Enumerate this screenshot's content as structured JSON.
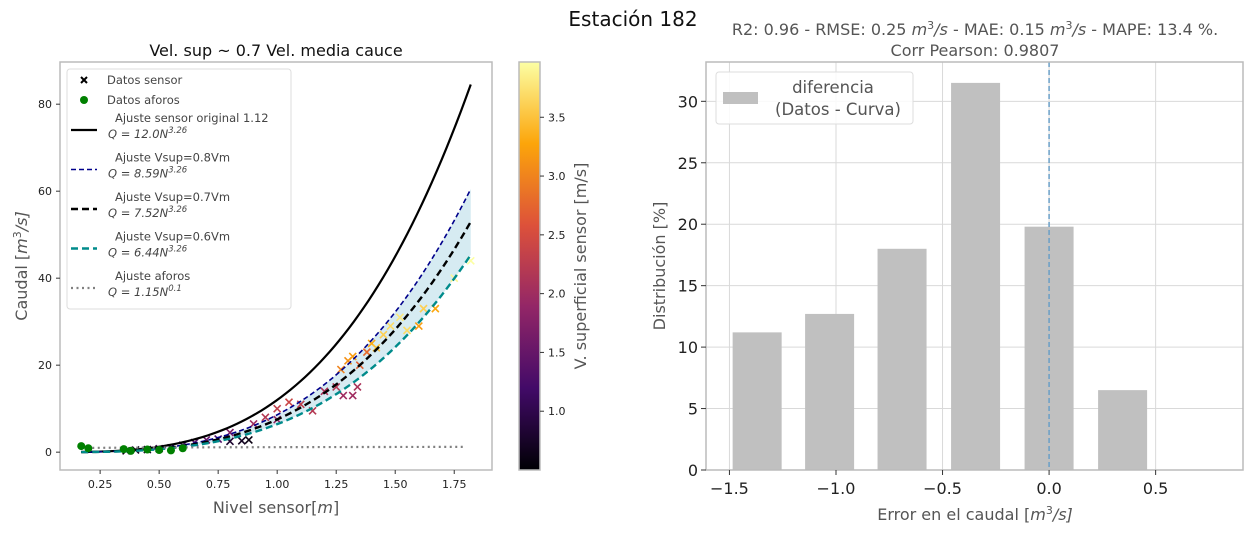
{
  "suptitle": "Estación 182",
  "chart_data": [
    {
      "type": "scatter",
      "title": "Vel. sup ~ 0.7 Vel. media cauce",
      "xlabel": "Nivel sensor[m]",
      "xlabel_parts": [
        "Nivel sensor[",
        "m",
        "]"
      ],
      "ylabel_parts": [
        "Caudal [",
        "m",
        "3",
        "/s]"
      ],
      "xlim": [
        0.08,
        1.91
      ],
      "ylim": [
        -4.1,
        89.7
      ],
      "xticks": [
        0.25,
        0.5,
        0.75,
        1.0,
        1.25,
        1.5,
        1.75
      ],
      "xtick_labels": [
        "0.25",
        "0.50",
        "0.75",
        "1.00",
        "1.25",
        "1.50",
        "1.75"
      ],
      "yticks": [
        0,
        20,
        40,
        60,
        80
      ],
      "ytick_labels": [
        "0",
        "20",
        "40",
        "60",
        "80"
      ],
      "legend_position": "upper-left",
      "legend": [
        {
          "label": "Datos sensor",
          "kind": "x-marker",
          "color": "#000000"
        },
        {
          "label": "Datos aforos",
          "kind": "dot",
          "color": "#008000"
        },
        {
          "label": "Ajuste sensor original 1.12",
          "eq_coef": "Q = 12.0N",
          "eq_exp": "3.26",
          "kind": "solid",
          "color": "#000000"
        },
        {
          "label": "Ajuste Vsup=0.8Vm",
          "eq_coef": "Q = 8.59N",
          "eq_exp": "3.26",
          "kind": "dashed-thin",
          "color": "#00008b"
        },
        {
          "label": "Ajuste Vsup=0.7Vm",
          "eq_coef": "Q = 7.52N",
          "eq_exp": "3.26",
          "kind": "dashed",
          "color": "#000000"
        },
        {
          "label": "Ajuste Vsup=0.6Vm",
          "eq_coef": "Q = 6.44N",
          "eq_exp": "3.26",
          "kind": "dashed",
          "color": "#008b8b"
        },
        {
          "label": "Ajuste aforos",
          "eq_coef": "Q = 1.15N",
          "eq_exp": "0.1",
          "kind": "dotted",
          "color": "#808080"
        }
      ],
      "curves": [
        {
          "name": "Ajuste sensor original 1.12",
          "a": 12.0,
          "b": 3.26,
          "x_range": [
            0.17,
            1.82
          ]
        },
        {
          "name": "Ajuste Vsup=0.8Vm",
          "a": 8.59,
          "b": 3.26,
          "x_range": [
            0.17,
            1.82
          ]
        },
        {
          "name": "Ajuste Vsup=0.7Vm",
          "a": 7.52,
          "b": 3.26,
          "x_range": [
            0.17,
            1.82
          ]
        },
        {
          "name": "Ajuste Vsup=0.6Vm",
          "a": 6.44,
          "b": 3.26,
          "x_range": [
            0.17,
            1.82
          ]
        },
        {
          "name": "Ajuste aforos",
          "a": 1.15,
          "b": 0.1,
          "x_range": [
            0.17,
            1.8
          ]
        }
      ],
      "band_between": [
        "Ajuste Vsup=0.8Vm",
        "Ajuste Vsup=0.6Vm"
      ],
      "band_color": "#add8e6",
      "sensor_points": [
        [
          0.36,
          0.3,
          0.6
        ],
        [
          0.4,
          0.5,
          0.7
        ],
        [
          0.45,
          0.6,
          0.8
        ],
        [
          0.5,
          0.8,
          0.9
        ],
        [
          0.55,
          1.0,
          1.0
        ],
        [
          0.6,
          1.6,
          1.2
        ],
        [
          0.65,
          2.2,
          1.4
        ],
        [
          0.7,
          2.8,
          1.5
        ],
        [
          0.75,
          3.0,
          1.3
        ],
        [
          0.8,
          2.5,
          0.8
        ],
        [
          0.85,
          2.6,
          0.7
        ],
        [
          0.88,
          2.8,
          0.6
        ],
        [
          0.8,
          4.5,
          1.7
        ],
        [
          0.9,
          6.5,
          2.0
        ],
        [
          0.95,
          8.0,
          2.2
        ],
        [
          1.0,
          10,
          2.3
        ],
        [
          1.05,
          11.5,
          2.4
        ],
        [
          1.1,
          11,
          2.3
        ],
        [
          1.0,
          7.5,
          1.9
        ],
        [
          1.15,
          9.5,
          2.2
        ],
        [
          1.2,
          14,
          2.1
        ],
        [
          1.25,
          15,
          2.2
        ],
        [
          1.28,
          13,
          2.0
        ],
        [
          1.32,
          13,
          2.0
        ],
        [
          1.34,
          15,
          2.1
        ],
        [
          1.27,
          19,
          3.0
        ],
        [
          1.3,
          21,
          3.1
        ],
        [
          1.32,
          22,
          3.2
        ],
        [
          1.35,
          20,
          2.7
        ],
        [
          1.38,
          23,
          2.8
        ],
        [
          1.4,
          25,
          3.3
        ],
        [
          1.42,
          24,
          3.5
        ],
        [
          1.45,
          27,
          3.6
        ],
        [
          1.48,
          29,
          3.7
        ],
        [
          1.52,
          31,
          3.8
        ],
        [
          1.55,
          28,
          3.7
        ],
        [
          1.6,
          29,
          3.2
        ],
        [
          1.62,
          33,
          3.6
        ],
        [
          1.67,
          33,
          3.3
        ],
        [
          1.75,
          40,
          3.9
        ],
        [
          1.82,
          44,
          3.97
        ]
      ],
      "aforo_points": [
        [
          0.17,
          1.4
        ],
        [
          0.2,
          0.9
        ],
        [
          0.35,
          0.7
        ],
        [
          0.38,
          0.3
        ],
        [
          0.45,
          0.6
        ],
        [
          0.5,
          0.5
        ],
        [
          0.55,
          0.4
        ],
        [
          0.6,
          0.9
        ]
      ],
      "colorbar": {
        "label": "V. superficial sensor [m/s]",
        "range": [
          0.5,
          3.97
        ],
        "ticks": [
          1.0,
          1.5,
          2.0,
          2.5,
          3.0,
          3.5
        ],
        "tick_labels": [
          "1.0",
          "1.5",
          "2.0",
          "2.5",
          "3.0",
          "3.5"
        ],
        "colormap": "inferno",
        "stops": [
          "#000004",
          "#420a68",
          "#932667",
          "#dd513a",
          "#fca50a",
          "#fcffa4"
        ]
      }
    },
    {
      "type": "bar",
      "title_line1_parts": [
        "R2: 0.96 - RMSE: 0.25 ",
        "m",
        "3",
        "/s",
        " - MAE: 0.15 ",
        "m",
        "3",
        "/s",
        " - MAPE: 13.4 %."
      ],
      "title_line2": "Corr Pearson: 0.9807",
      "xlabel_parts": [
        "Error en el caudal  [",
        "m",
        "3",
        "/s]"
      ],
      "ylabel": "Distribución [%]",
      "x": [
        -1.37,
        -1.03,
        -0.69,
        -0.345,
        0.0,
        0.345
      ],
      "bar_width": 0.23,
      "values": [
        11.2,
        12.7,
        18.0,
        31.5,
        19.8,
        6.5
      ],
      "color": "#c0c0c0",
      "xlim": [
        -1.61,
        0.91
      ],
      "ylim": [
        0,
        33.2
      ],
      "xticks": [
        -1.5,
        -1.0,
        -0.5,
        0.0,
        0.5
      ],
      "xtick_labels": [
        "−1.5",
        "−1.0",
        "−0.5",
        "0.0",
        "0.5"
      ],
      "yticks": [
        0,
        5,
        10,
        15,
        20,
        25,
        30
      ],
      "ytick_labels": [
        "0",
        "5",
        "10",
        "15",
        "20",
        "25",
        "30"
      ],
      "vline_x": 0.0,
      "vline_color": "#6a9fc7",
      "grid": true,
      "legend_position": "upper-left",
      "legend_label_line1": "diferencia",
      "legend_label_line2": "(Datos - Curva)"
    }
  ]
}
